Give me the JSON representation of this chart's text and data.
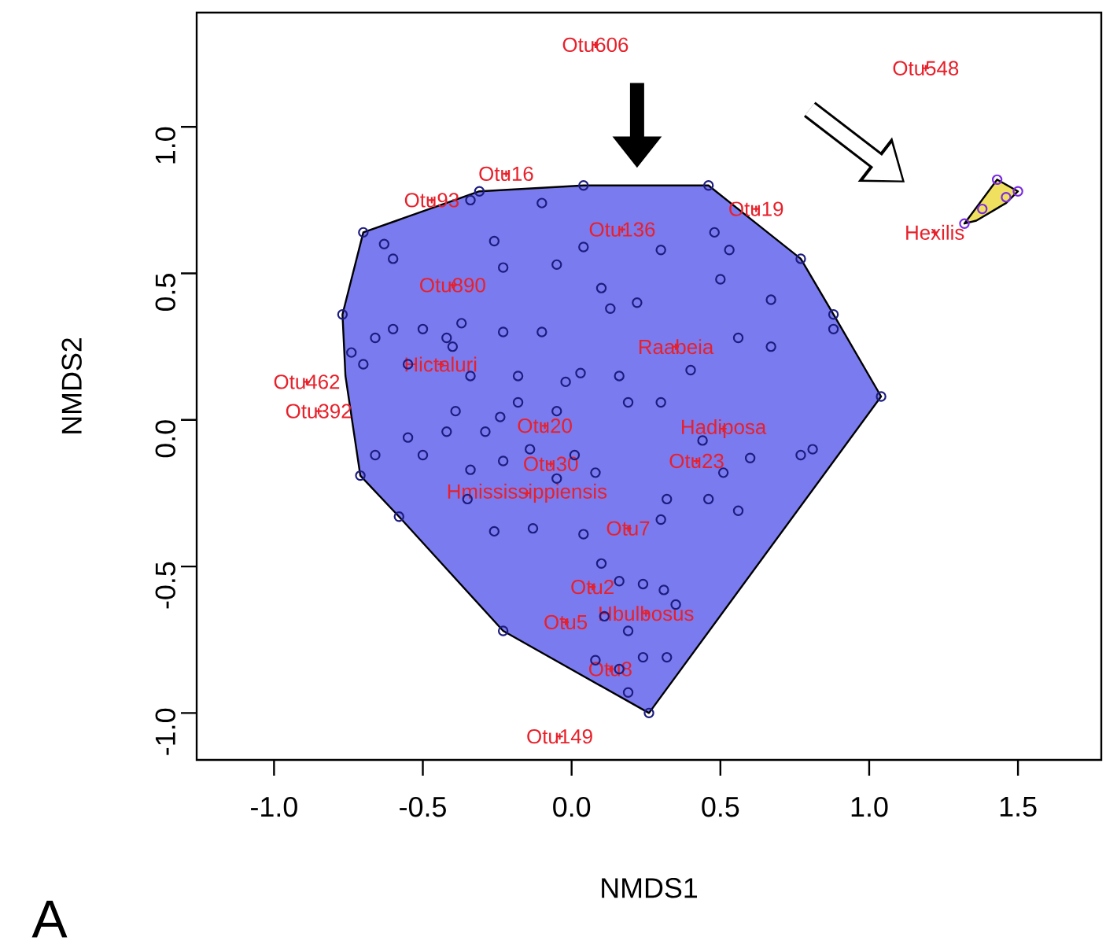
{
  "chart_data": {
    "type": "scatter",
    "xlabel": "NMDS1",
    "ylabel": "NMDS2",
    "xlim": [
      -1.26,
      1.78
    ],
    "ylim": [
      -1.16,
      1.39
    ],
    "xticks": [
      {
        "value": -1.0,
        "label": "-1.0"
      },
      -0.5,
      {
        "value": 0.0,
        "label": "0.0"
      },
      0.5,
      {
        "value": 1.0,
        "label": "1.0"
      },
      1.5
    ],
    "yticks": [
      {
        "value": -1.0,
        "label": "-1.0"
      },
      -0.5,
      {
        "value": 0.0,
        "label": "0.0"
      },
      0.5,
      {
        "value": 1.0,
        "label": "1.0"
      }
    ],
    "grid": false,
    "annotations": [
      "A"
    ],
    "series": [
      {
        "type": "area",
        "color": "#7b7bf0",
        "x": [
          -0.7,
          -0.31,
          0.04,
          0.46,
          0.77,
          0.88,
          1.04,
          0.26,
          -0.23,
          -0.58,
          -0.71,
          -0.76,
          -0.77
        ],
        "values": [
          0.64,
          0.78,
          0.8,
          0.8,
          0.55,
          0.36,
          0.08,
          -1.0,
          -0.72,
          -0.33,
          -0.19,
          0.15,
          0.36
        ]
      },
      {
        "type": "area",
        "color": "#f0e060",
        "x": [
          1.32,
          1.43,
          1.5,
          1.46,
          1.36
        ],
        "values": [
          0.67,
          0.82,
          0.78,
          0.74,
          0.68
        ]
      },
      {
        "marker": "circle",
        "color": "#1c1c80",
        "x": [
          -0.7,
          -0.63,
          -0.6,
          -0.31,
          -0.34,
          -0.1,
          0.04,
          -0.26,
          -0.23,
          -0.05,
          0.04,
          0.46,
          0.48,
          0.53,
          0.5,
          0.77,
          0.67,
          0.88,
          0.88,
          0.3,
          0.1,
          0.13,
          0.22,
          -0.1,
          -0.23,
          -0.37,
          -0.5,
          -0.42,
          -0.6,
          -0.66,
          -0.77,
          -0.74,
          -0.7,
          -0.55,
          -0.4,
          -0.34,
          -0.18,
          -0.02,
          0.03,
          0.16,
          0.19,
          0.3,
          -0.05,
          -0.24,
          -0.18,
          -0.39,
          -0.29,
          -0.42,
          -0.55,
          -0.66,
          -0.71,
          -0.5,
          -0.34,
          -0.23,
          -0.14,
          0.01,
          -0.05,
          0.08,
          0.44,
          0.6,
          0.77,
          0.81,
          0.51,
          0.46,
          0.56,
          0.32,
          0.3,
          -0.58,
          -0.35,
          -0.26,
          -0.13,
          0.04,
          0.1,
          0.16,
          0.24,
          0.31,
          0.35,
          -0.23,
          0.11,
          0.19,
          0.08,
          0.16,
          0.24,
          0.19,
          0.32,
          0.26,
          1.04,
          0.4,
          0.56,
          0.67
        ],
        "values": [
          0.64,
          0.6,
          0.55,
          0.78,
          0.75,
          0.74,
          0.8,
          0.61,
          0.52,
          0.53,
          0.59,
          0.8,
          0.64,
          0.58,
          0.48,
          0.55,
          0.41,
          0.36,
          0.31,
          0.58,
          0.45,
          0.38,
          0.4,
          0.3,
          0.3,
          0.33,
          0.31,
          0.28,
          0.31,
          0.28,
          0.36,
          0.23,
          0.19,
          0.19,
          0.25,
          0.15,
          0.15,
          0.13,
          0.16,
          0.15,
          0.06,
          0.06,
          0.03,
          0.01,
          0.06,
          0.03,
          -0.04,
          -0.04,
          -0.06,
          -0.12,
          -0.19,
          -0.12,
          -0.17,
          -0.14,
          -0.1,
          -0.12,
          -0.2,
          -0.18,
          -0.07,
          -0.13,
          -0.12,
          -0.1,
          -0.18,
          -0.27,
          -0.31,
          -0.27,
          -0.34,
          -0.33,
          -0.27,
          -0.38,
          -0.37,
          -0.39,
          -0.49,
          -0.55,
          -0.56,
          -0.58,
          -0.63,
          -0.72,
          -0.67,
          -0.72,
          -0.82,
          -0.85,
          -0.81,
          -0.93,
          -0.81,
          -1.0,
          0.08,
          0.17,
          0.28,
          0.25
        ]
      },
      {
        "marker": "circle",
        "color": "#7a2be2",
        "x": [
          1.43,
          1.32,
          1.46,
          1.38,
          1.5
        ],
        "values": [
          0.82,
          0.67,
          0.76,
          0.72,
          0.78
        ]
      },
      {
        "marker": "cross",
        "color": "#e8202a",
        "x": [
          0.08,
          1.19,
          -0.22,
          -0.47,
          0.62,
          0.17,
          -0.4,
          0.35,
          1.22,
          -0.44,
          -0.89,
          -0.85,
          -0.09,
          0.51,
          -0.07,
          0.42,
          -0.15,
          0.19,
          0.07,
          0.25,
          -0.02,
          0.13,
          -0.04
        ],
        "values": [
          1.28,
          1.2,
          0.84,
          0.75,
          0.72,
          0.65,
          0.46,
          0.25,
          0.64,
          0.19,
          0.13,
          0.03,
          -0.02,
          -0.03,
          -0.15,
          -0.14,
          -0.25,
          -0.37,
          -0.57,
          -0.66,
          -0.69,
          -0.85,
          -1.08
        ],
        "value_labels": [
          "Otu606",
          "Otu548",
          "Otu16",
          "Otu93",
          "Otu19",
          "Otu136",
          "Otu890",
          "Raabeia",
          "Hexilis",
          "Hictaluri",
          "Otu462",
          "Otu392",
          "Otu20",
          "Hadiposa",
          "Otu30",
          "Otu23",
          "Hmississippiensis",
          "Otu7",
          "Otu2",
          "Hbulbosus",
          "Otu5",
          "Otu8",
          "Otu149"
        ]
      }
    ]
  }
}
